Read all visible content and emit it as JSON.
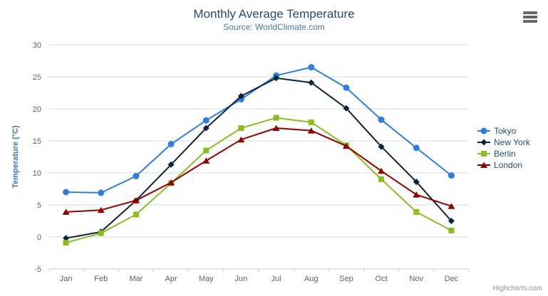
{
  "credits": "Highcharts.com",
  "icons": {
    "export_menu": "hamburger-icon"
  },
  "chart_data": {
    "type": "line",
    "title": "Monthly Average Temperature",
    "subtitle": "Source: WorldClimate.com",
    "categories": [
      "Jan",
      "Feb",
      "Mar",
      "Apr",
      "May",
      "Jun",
      "Jul",
      "Aug",
      "Sep",
      "Oct",
      "Nov",
      "Dec"
    ],
    "xlabel": "",
    "ylabel": "Temperature (°C)",
    "ylim": [
      -5,
      30
    ],
    "ytick_step": 5,
    "ytick_labels": [
      "-5",
      "0",
      "5",
      "10",
      "15",
      "20",
      "25",
      "30"
    ],
    "grid": true,
    "legend_position": "right",
    "series": [
      {
        "name": "Tokyo",
        "color": "#2f7ed8",
        "marker": "circle",
        "values": [
          7.0,
          6.9,
          9.5,
          14.5,
          18.2,
          21.5,
          25.2,
          26.5,
          23.3,
          18.3,
          13.9,
          9.6
        ]
      },
      {
        "name": "New York",
        "color": "#0d233a",
        "marker": "diamond",
        "values": [
          -0.2,
          0.8,
          5.7,
          11.3,
          17.0,
          22.0,
          24.8,
          24.1,
          20.1,
          14.1,
          8.6,
          2.5
        ]
      },
      {
        "name": "Berlin",
        "color": "#8bbc21",
        "marker": "square",
        "values": [
          -0.9,
          0.6,
          3.5,
          8.4,
          13.5,
          17.0,
          18.6,
          17.9,
          14.3,
          9.0,
          3.9,
          1.0
        ]
      },
      {
        "name": "London",
        "color": "#910000",
        "marker": "triangle",
        "values": [
          3.9,
          4.2,
          5.7,
          8.5,
          11.9,
          15.2,
          17.0,
          16.6,
          14.2,
          10.3,
          6.6,
          4.8
        ]
      }
    ],
    "colors": {
      "title": "#274b6d",
      "subtitle": "#4d759e",
      "axis_label": "#606060",
      "y_axis_title": "#4572a7",
      "grid_line": "#d8d8d8",
      "axis_line": "#c0d0e0",
      "legend_text": "#274b6d",
      "credits": "#909090",
      "export_icon": "#666666"
    }
  }
}
